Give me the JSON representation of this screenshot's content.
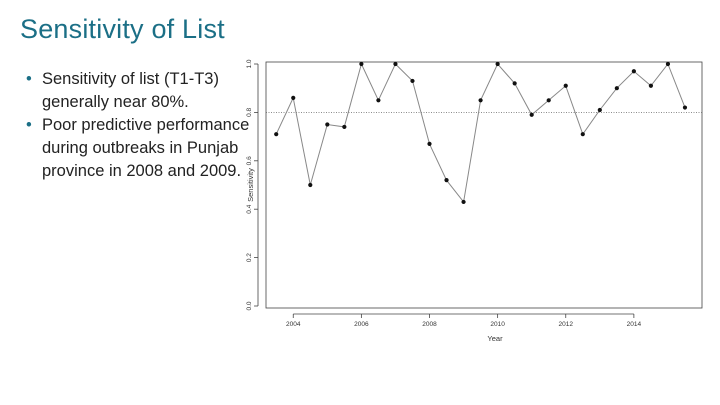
{
  "slide": {
    "title": "Sensitivity of List",
    "bullets": [
      "Sensitivity of list (T1-T3) generally near 80%.",
      "Poor predictive performance during outbreaks in Punjab province in 2008 and 2009."
    ]
  },
  "colors": {
    "title": "#1b6f86",
    "line": "#888888",
    "point": "#111111",
    "refline": "#666666"
  },
  "chart_data": {
    "type": "line",
    "title": "",
    "xlabel": "Year",
    "ylabel": "Sensitivity",
    "xlim": [
      2003.2,
      2016.0
    ],
    "ylim": [
      0.0,
      1.0
    ],
    "xticks": [
      2004,
      2006,
      2008,
      2010,
      2012,
      2014
    ],
    "yticks": [
      "0.0",
      "0.2",
      "0.4",
      "0.6",
      "0.8",
      "1.0"
    ],
    "reference_line": {
      "y": 0.8,
      "style": "dotted"
    },
    "grid": false,
    "series": [
      {
        "x": [
          2003.5,
          2004.0,
          2004.5,
          2005.0,
          2005.5,
          2006.0,
          2006.5,
          2007.0,
          2007.5,
          2008.0,
          2008.5,
          2009.0,
          2009.5,
          2010.0,
          2010.5,
          2011.0,
          2011.5,
          2012.0,
          2012.5,
          2013.0,
          2013.5,
          2014.0,
          2014.5,
          2015.0,
          2015.5
        ],
        "y": [
          0.71,
          0.86,
          0.5,
          0.75,
          0.74,
          1.0,
          0.85,
          1.0,
          0.93,
          0.67,
          0.52,
          0.43,
          0.85,
          1.0,
          0.92,
          0.79,
          0.85,
          0.91,
          0.71,
          0.81,
          0.9,
          0.97,
          0.91,
          1.0,
          0.82
        ]
      }
    ]
  }
}
